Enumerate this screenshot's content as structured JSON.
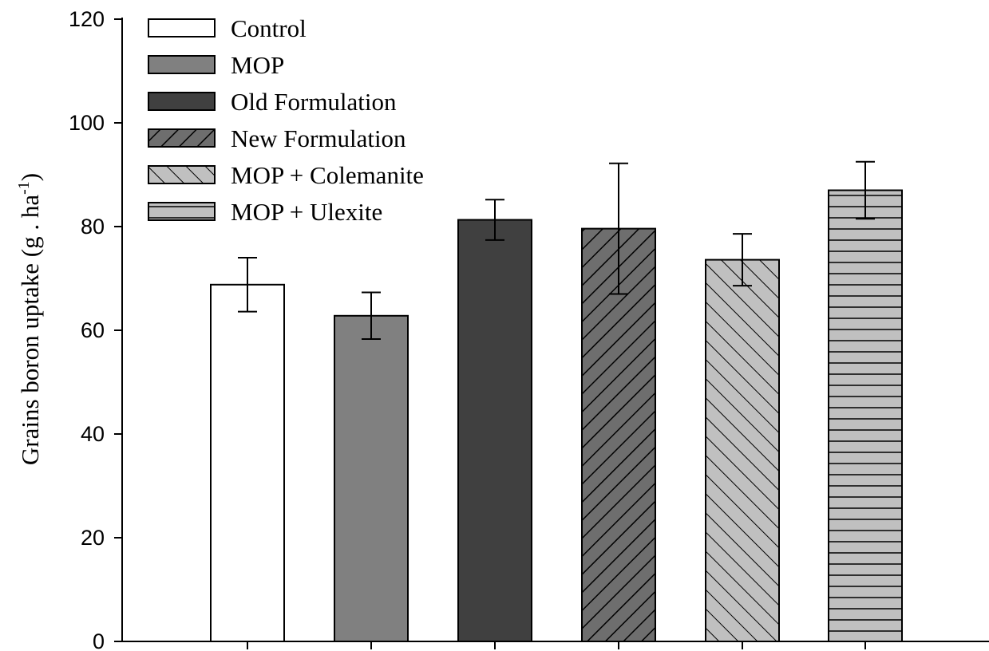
{
  "chart_data": {
    "type": "bar",
    "title": "",
    "xlabel": "",
    "ylabel": "Grains boron uptake (g . ha",
    "ylabel_superscript": "-1",
    "ylabel_suffix": ")",
    "ylim": [
      0,
      120
    ],
    "yticks": [
      "0",
      "20",
      "40",
      "60",
      "80",
      "100",
      "120"
    ],
    "grid": false,
    "legend_position": "top-left",
    "categories": [
      "Control",
      "MOP",
      "Old Formulation",
      "New Formulation",
      "MOP + Colemanite",
      "MOP + Ulexite"
    ],
    "values": [
      68.8,
      62.8,
      81.3,
      79.6,
      73.6,
      87.0
    ],
    "errors": [
      5.2,
      4.5,
      3.9,
      12.6,
      5.0,
      5.5
    ],
    "series_styles": [
      {
        "fill": "#ffffff",
        "pattern": "none"
      },
      {
        "fill": "#808080",
        "pattern": "none"
      },
      {
        "fill": "#404040",
        "pattern": "none"
      },
      {
        "fill": "#6e6e6e",
        "pattern": "diag-up"
      },
      {
        "fill": "#c0c0c0",
        "pattern": "diag-down"
      },
      {
        "fill": "#c0c0c0",
        "pattern": "horizontal"
      }
    ]
  }
}
